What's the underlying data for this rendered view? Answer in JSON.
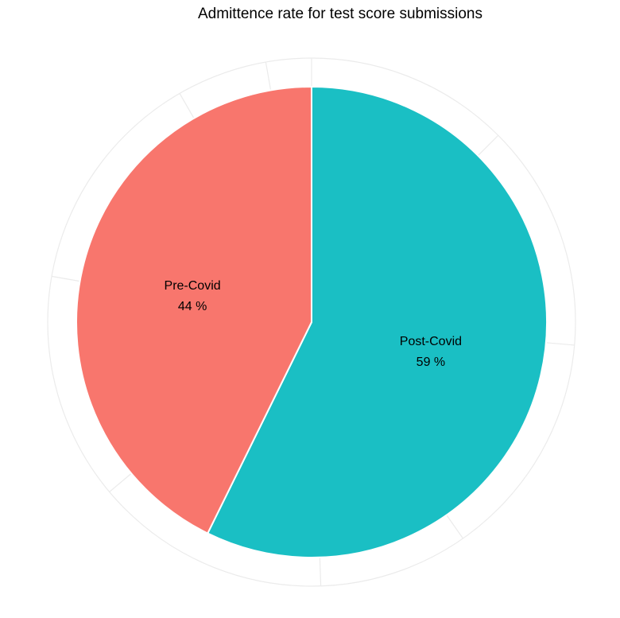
{
  "chart_data": {
    "type": "pie",
    "title": "Admittence rate for test score submissions",
    "categories": [
      "Post-Covid",
      "Pre-Covid"
    ],
    "values": [
      59,
      44
    ],
    "value_labels": [
      "59 %",
      "44 %"
    ],
    "colors": [
      "#1ABFC4",
      "#F8766D"
    ],
    "start_angle_deg": 0,
    "direction": "clockwise",
    "legend": "none",
    "grid": true,
    "grid_color": "#EBEBEB",
    "slice_border_color": "#FFFFFF"
  }
}
